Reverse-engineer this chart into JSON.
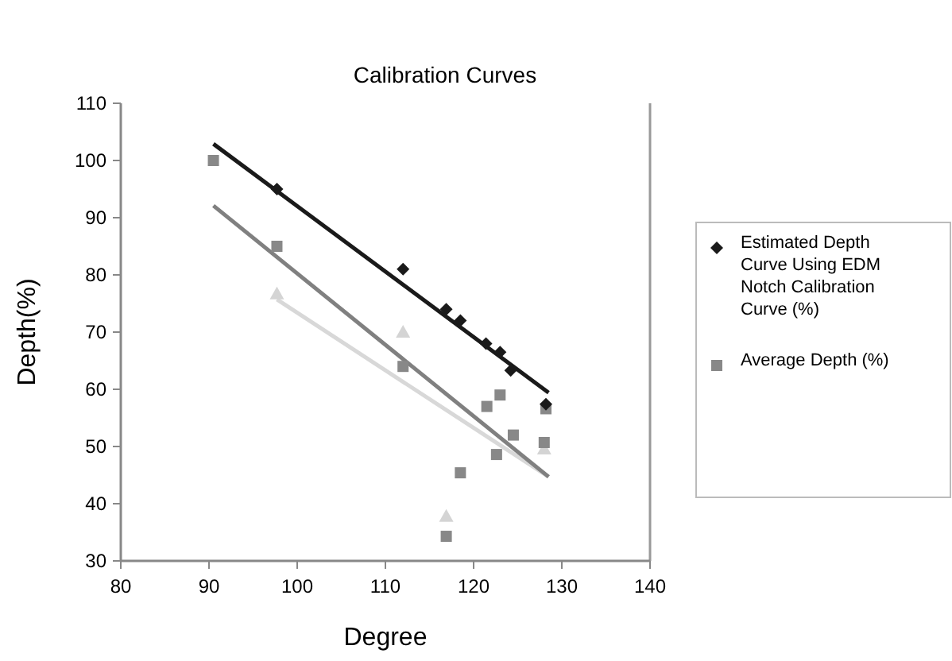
{
  "chart_data": {
    "type": "scatter",
    "title": "Calibration Curves",
    "xlabel": "Degree",
    "ylabel": "Depth(%)",
    "xlim": [
      80,
      140
    ],
    "xticks": [
      80,
      90,
      100,
      110,
      120,
      130,
      140
    ],
    "ylim": [
      30,
      110
    ],
    "yticks": [
      30,
      40,
      50,
      60,
      70,
      80,
      90,
      100,
      110
    ],
    "legend": "right",
    "grid": false,
    "series": [
      {
        "name": "Estimated Depth Curve Using EDM Notch Calibration Curve (%)",
        "color": "#1a1a1a",
        "marker": "diamond",
        "x": [
          97.7,
          112,
          116.9,
          118.5,
          121.4,
          123,
          124.2,
          128.2
        ],
        "values": [
          95,
          81,
          74,
          72,
          68,
          66.5,
          63.3,
          57.4
        ]
      },
      {
        "name": "Average Depth (%)",
        "color": "#888888",
        "marker": "square",
        "x": [
          90.5,
          97.7,
          112,
          121.5,
          123,
          124.5,
          122.6,
          118.5,
          116.9,
          128.2,
          128
        ],
        "values": [
          100,
          85,
          64,
          57,
          59,
          52,
          48.6,
          45.4,
          34.3,
          56.6,
          50.7
        ]
      },
      {
        "color": "#d4d4d4",
        "marker": "triangle",
        "x": [
          97.7,
          112,
          116.9,
          128
        ],
        "values": [
          76.7,
          70,
          37.8,
          49.6
        ]
      },
      {
        "type": "line",
        "color": "#1a1a1a",
        "marker": "none",
        "x": [
          90.5,
          128.5
        ],
        "values": [
          102.9,
          59.4
        ]
      },
      {
        "type": "line",
        "color": "#808080",
        "marker": "none",
        "x": [
          90.5,
          128.5
        ],
        "values": [
          92.1,
          44.7
        ]
      },
      {
        "type": "line",
        "color": "#d8d8d8",
        "marker": "none",
        "x": [
          97.7,
          128.5
        ],
        "values": [
          75.7,
          44.7
        ]
      }
    ]
  }
}
